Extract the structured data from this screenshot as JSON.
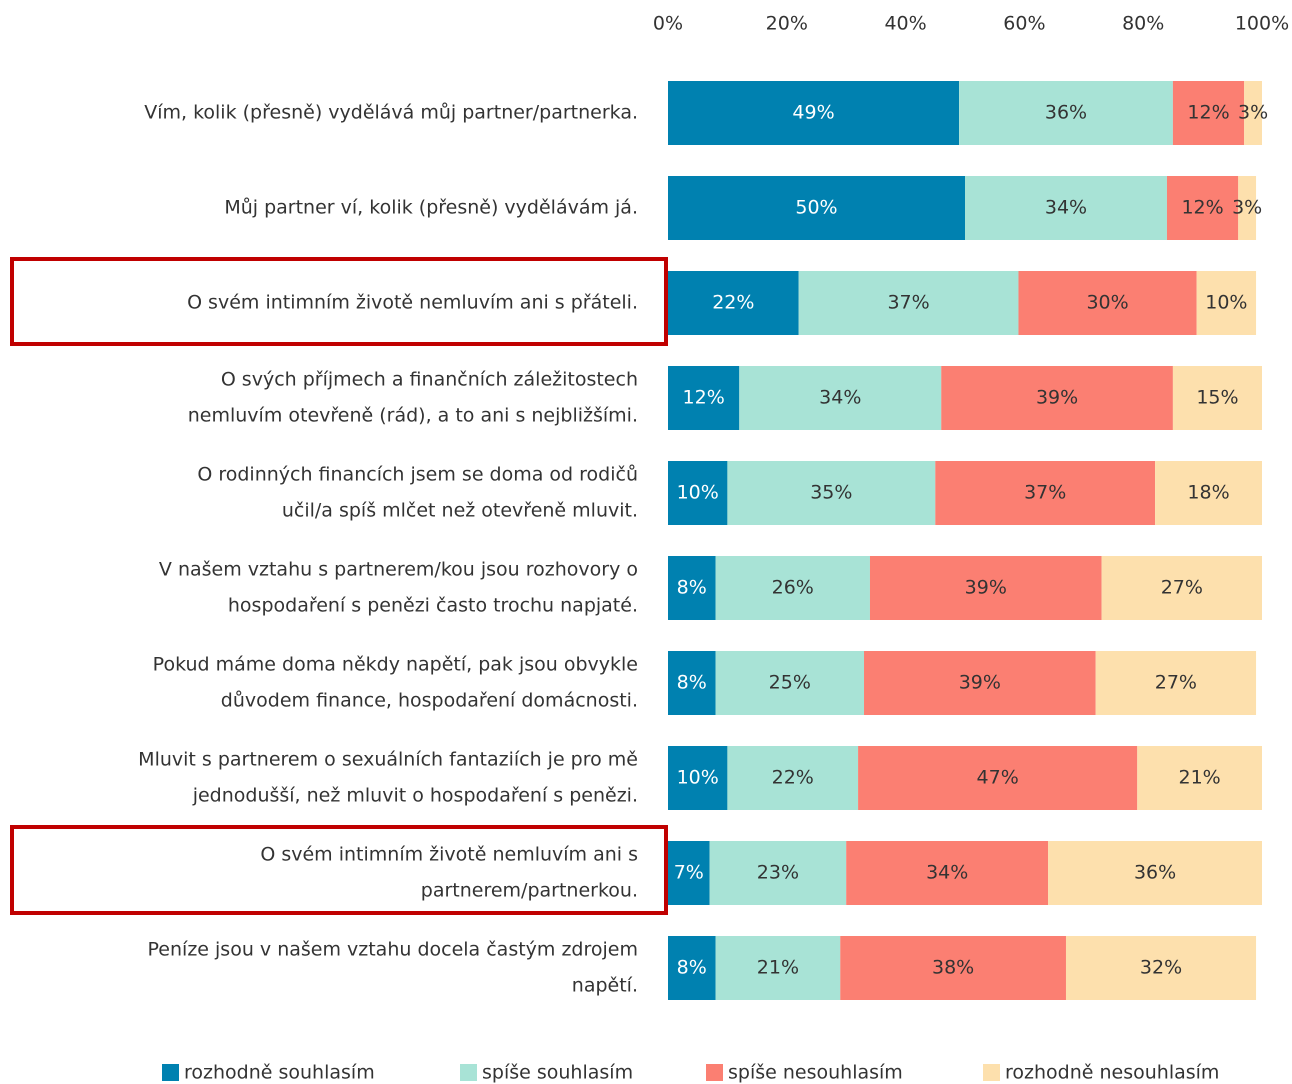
{
  "chart_data": {
    "type": "bar",
    "orientation": "horizontal",
    "stacked": true,
    "categories": [
      [
        "Vím, kolik (přesně) vydělává můj partner/partnerka."
      ],
      [
        "Můj partner ví, kolik (přesně) vydělávám já."
      ],
      [
        "O svém intimním životě nemluvím ani s přáteli."
      ],
      [
        "O svých příjmech a finančních záležitostech",
        "nemluvím otevřeně (rád), a to ani s nejbližšími."
      ],
      [
        "O rodinných financích jsem se doma od rodičů",
        "učil/a spíš mlčet než otevřeně mluvit."
      ],
      [
        "V našem vztahu s partnerem/kou jsou rozhovory o",
        "hospodaření s penězi často trochu napjaté."
      ],
      [
        "Pokud máme doma někdy napětí, pak jsou obvykle",
        "důvodem finance, hospodaření domácnosti."
      ],
      [
        "Mluvit s partnerem o sexuálních fantaziích je pro mě",
        "jednodušší, než mluvit o hospodaření s penězi."
      ],
      [
        "O svém intimním životě nemluvím ani s",
        "partnerem/partnerkou."
      ],
      [
        "Peníze jsou v našem vztahu docela častým zdrojem",
        "napětí."
      ]
    ],
    "series": [
      {
        "name": "rozhodně souhlasím",
        "color": "#0081b0",
        "label_color": "#ffffff",
        "values": [
          49,
          50,
          22,
          12,
          10,
          8,
          8,
          10,
          7,
          8
        ],
        "value_labels": [
          "49%",
          "50%",
          "22%",
          "12%",
          "10%",
          "8%",
          "8%",
          "10%",
          "7%",
          "8%"
        ]
      },
      {
        "name": "spíše souhlasím",
        "color": "#a8e3d6",
        "label_color": "#333333",
        "values": [
          36,
          34,
          37,
          34,
          35,
          26,
          25,
          22,
          23,
          21
        ],
        "value_labels": [
          "36%",
          "34%",
          "37%",
          "34%",
          "35%",
          "26%",
          "25%",
          "22%",
          "23%",
          "21%"
        ]
      },
      {
        "name": "spíše nesouhlasím",
        "color": "#fb7f72",
        "label_color": "#333333",
        "values": [
          12,
          12,
          30,
          39,
          37,
          39,
          39,
          47,
          34,
          38
        ],
        "value_labels": [
          "12%",
          "12%",
          "30%",
          "39%",
          "37%",
          "39%",
          "39%",
          "47%",
          "34%",
          "38%"
        ]
      },
      {
        "name": "rozhodně nesouhlasím",
        "color": "#fde0ad",
        "label_color": "#333333",
        "values": [
          3,
          3,
          10,
          15,
          18,
          27,
          27,
          21,
          36,
          32
        ],
        "value_labels": [
          "3%",
          "3%",
          "10%",
          "15%",
          "18%",
          "27%",
          "27%",
          "21%",
          "36%",
          "32%"
        ]
      }
    ],
    "xlim": [
      0,
      100
    ],
    "xticks": [
      {
        "value": 0,
        "label": "0%"
      },
      {
        "value": 20,
        "label": "20%"
      },
      {
        "value": 40,
        "label": "40%"
      },
      {
        "value": 60,
        "label": "60%"
      },
      {
        "value": 80,
        "label": "80%"
      },
      {
        "value": 100,
        "label": "100%"
      }
    ],
    "xaxis_position": "top",
    "grid": false,
    "legend": "bottom"
  }
}
